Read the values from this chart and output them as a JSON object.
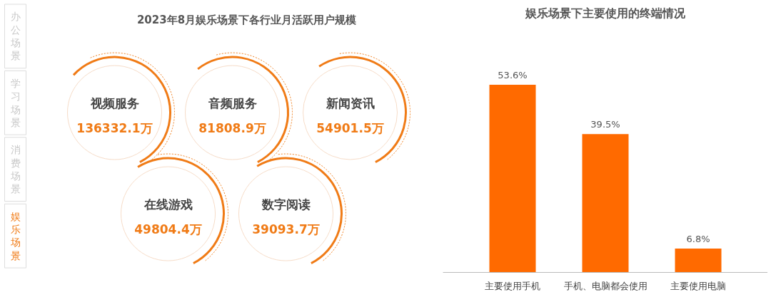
{
  "chart_data": [
    {
      "type": "other",
      "title": "2023年8月娱乐场景下各行业月活跃用户规模",
      "categories": [
        "视频服务",
        "音频服务",
        "新闻资讯",
        "在线游戏",
        "数字阅读"
      ],
      "values": [
        136332.1,
        81808.9,
        54901.5,
        49804.4,
        39093.7
      ],
      "value_labels": [
        "136332.1万",
        "81808.9万",
        "54901.5万",
        "49804.4万",
        "39093.7万"
      ],
      "color": "#f07b16",
      "annotations": [
        "办公场景",
        "学习场景",
        "消费场景",
        "娱乐场景"
      ]
    },
    {
      "type": "bar",
      "title": "娱乐场景下主要使用的终端情况",
      "categories": [
        "主要使用手机",
        "手机、电脑都会使用",
        "主要使用电脑"
      ],
      "values": [
        53.6,
        39.5,
        6.8
      ],
      "value_labels": [
        "53.6%",
        "39.5%",
        "6.8%"
      ],
      "color": "#ff6a00"
    }
  ]
}
